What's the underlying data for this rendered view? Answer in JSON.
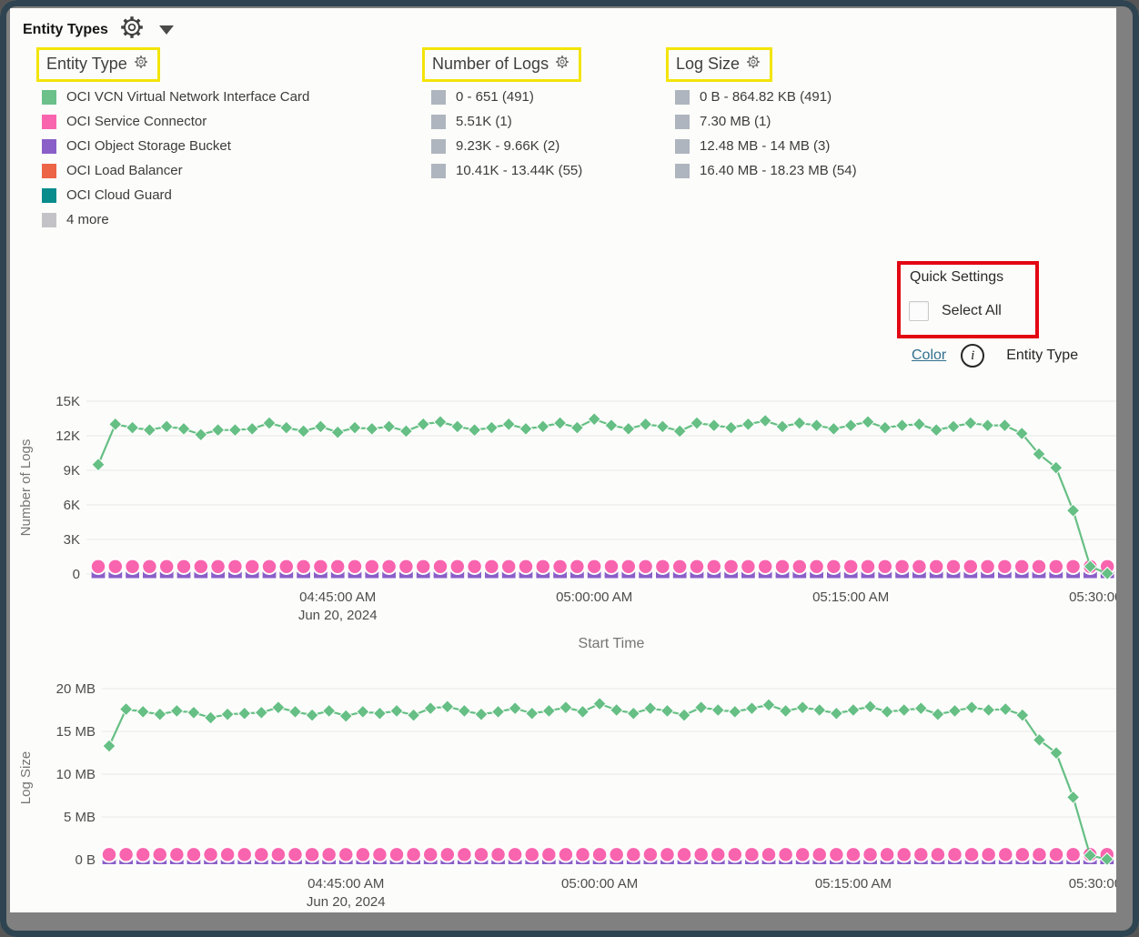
{
  "header": {
    "title": "Entity Types"
  },
  "annotation_colors": {
    "yellow_box": "#f3e40a",
    "red_box": "#e30613"
  },
  "facets": {
    "entity_type": {
      "title": "Entity Type",
      "items": [
        {
          "label": "OCI VCN Virtual Network Interface Card",
          "color": "#6cc08a"
        },
        {
          "label": "OCI Service Connector",
          "color": "#f964ae"
        },
        {
          "label": "OCI Object Storage Bucket",
          "color": "#8a5fc8"
        },
        {
          "label": "OCI Load Balancer",
          "color": "#ec6547"
        },
        {
          "label": "OCI Cloud Guard",
          "color": "#088c8c"
        },
        {
          "label": "4 more",
          "color": "#c3c3c7"
        }
      ]
    },
    "number_of_logs": {
      "title": "Number of Logs",
      "swatch_color": "#aeb5be",
      "items": [
        {
          "label": "0 - 651 (491)"
        },
        {
          "label": "5.51K (1)"
        },
        {
          "label": "9.23K - 9.66K (2)"
        },
        {
          "label": "10.41K - 13.44K (55)"
        }
      ]
    },
    "log_size": {
      "title": "Log Size",
      "swatch_color": "#aeb5be",
      "items": [
        {
          "label": "0 B - 864.82 KB (491)"
        },
        {
          "label": "7.30 MB (1)"
        },
        {
          "label": "12.48 MB - 14 MB (3)"
        },
        {
          "label": "16.40 MB - 18.23 MB (54)"
        }
      ]
    }
  },
  "quick_settings": {
    "title": "Quick Settings",
    "select_all_label": "Select All",
    "select_all_checked": false
  },
  "color_row": {
    "link_label": "Color",
    "value": "Entity Type"
  },
  "chart_data": [
    {
      "type": "line",
      "title": "",
      "ylabel": "Number of Logs",
      "xlabel": "Start Time",
      "ylim": [
        0,
        15000
      ],
      "grid": true,
      "y_ticks": [
        {
          "label": "15K",
          "value": 15000
        },
        {
          "label": "12K",
          "value": 12000
        },
        {
          "label": "9K",
          "value": 9000
        },
        {
          "label": "6K",
          "value": 6000
        },
        {
          "label": "3K",
          "value": 3000
        },
        {
          "label": "0",
          "value": 0
        }
      ],
      "x_point_count": 60,
      "x_time_range": [
        "4:31:00 AM",
        "5:30:00 AM"
      ],
      "x_tick_interval": "1 minute per point",
      "x_ticks": [
        {
          "label": "04:45:00 AM",
          "sub": "Jun 20, 2024",
          "index": 14
        },
        {
          "label": "05:00:00 AM",
          "sub": "",
          "index": 29
        },
        {
          "label": "05:15:00 AM",
          "sub": "",
          "index": 44
        },
        {
          "label": "05:30:00 AM",
          "sub": "",
          "index": 59
        }
      ],
      "series": [
        {
          "name": "OCI VCN Virtual Network Interface Card",
          "color": "#66bf84",
          "marker": "diamond",
          "line": true,
          "values": [
            9500,
            13000,
            12700,
            12500,
            12800,
            12600,
            12100,
            12500,
            12500,
            12600,
            13100,
            12700,
            12400,
            12800,
            12300,
            12700,
            12600,
            12800,
            12400,
            13000,
            13200,
            12800,
            12500,
            12700,
            13000,
            12600,
            12800,
            13100,
            12700,
            13440,
            12900,
            12600,
            13000,
            12800,
            12400,
            13100,
            12900,
            12700,
            13000,
            13300,
            12800,
            13100,
            12900,
            12600,
            12900,
            13200,
            12700,
            12900,
            13000,
            12500,
            12800,
            13100,
            12900,
            12900,
            12200,
            10410,
            9230,
            5510,
            650,
            50
          ]
        },
        {
          "name": "OCI Service Connector",
          "color": "#f964ae",
          "marker": "circle",
          "line": false,
          "constant_value": 650
        },
        {
          "name": "OCI Object Storage Bucket",
          "color": "#8a5fc8",
          "marker": "square",
          "line": false,
          "constant_value": 150
        },
        {
          "name": "OCI Cloud Guard",
          "color": "#088c8c",
          "marker": "diamond-small",
          "line": false,
          "constant_value": 60
        }
      ]
    },
    {
      "type": "line",
      "title": "",
      "ylabel": "Log Size",
      "xlabel": "",
      "ylim": [
        0,
        20
      ],
      "unit": "MB",
      "grid": true,
      "y_ticks": [
        {
          "label": "20 MB",
          "value": 20
        },
        {
          "label": "15 MB",
          "value": 15
        },
        {
          "label": "10 MB",
          "value": 10
        },
        {
          "label": "5 MB",
          "value": 5
        },
        {
          "label": "0 B",
          "value": 0
        }
      ],
      "x_point_count": 60,
      "x_time_range": [
        "4:31:00 AM",
        "5:30:00 AM"
      ],
      "x_tick_interval": "1 minute per point",
      "x_ticks": [
        {
          "label": "04:45:00 AM",
          "sub": "Jun 20, 2024",
          "index": 14
        },
        {
          "label": "05:00:00 AM",
          "sub": "",
          "index": 29
        },
        {
          "label": "05:15:00 AM",
          "sub": "",
          "index": 44
        },
        {
          "label": "05:30:00 AM",
          "sub": "",
          "index": 59
        }
      ],
      "series": [
        {
          "name": "OCI VCN Virtual Network Interface Card",
          "color": "#66bf84",
          "marker": "diamond",
          "line": true,
          "values": [
            13.3,
            17.6,
            17.3,
            17.0,
            17.4,
            17.2,
            16.6,
            17.0,
            17.1,
            17.2,
            17.8,
            17.3,
            16.9,
            17.4,
            16.8,
            17.3,
            17.1,
            17.4,
            16.9,
            17.7,
            17.9,
            17.4,
            17.0,
            17.3,
            17.7,
            17.1,
            17.4,
            17.8,
            17.3,
            18.23,
            17.5,
            17.1,
            17.7,
            17.4,
            16.9,
            17.8,
            17.5,
            17.3,
            17.7,
            18.1,
            17.4,
            17.8,
            17.5,
            17.1,
            17.5,
            17.9,
            17.3,
            17.5,
            17.7,
            17.0,
            17.4,
            17.8,
            17.5,
            17.6,
            16.9,
            14.0,
            12.48,
            7.3,
            0.5,
            0.05
          ]
        },
        {
          "name": "OCI Service Connector",
          "color": "#f964ae",
          "marker": "circle",
          "line": false,
          "constant_value": 0.6
        },
        {
          "name": "OCI Object Storage Bucket",
          "color": "#8a5fc8",
          "marker": "square",
          "line": false,
          "constant_value": 0.15
        },
        {
          "name": "OCI Cloud Guard",
          "color": "#088c8c",
          "marker": "diamond-small",
          "line": false,
          "constant_value": 0.05
        }
      ]
    }
  ]
}
